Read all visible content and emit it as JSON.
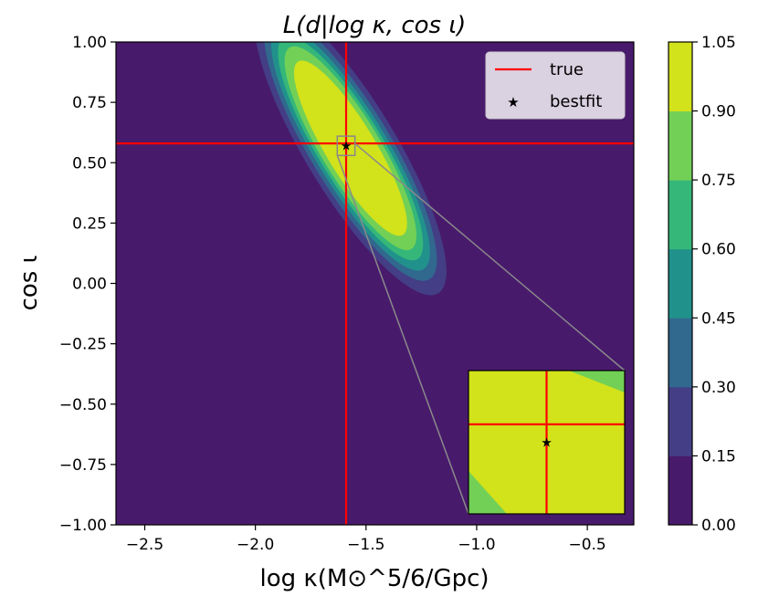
{
  "chart_data": {
    "type": "heatmap",
    "subtype": "filled-contour",
    "title": "L(d|log κ, cos ι)",
    "xlabel": "log κ(M⊙^5/6/Gpc)",
    "ylabel": "cos ι",
    "xlim": [
      -2.63,
      -0.29
    ],
    "ylim": [
      -1.0,
      1.0
    ],
    "x_ticks": [
      -2.5,
      -2.0,
      -1.5,
      -1.0,
      -0.5
    ],
    "x_tick_labels": [
      "−2.5",
      "−2.0",
      "−1.5",
      "−1.0",
      "−0.5"
    ],
    "y_ticks": [
      1.0,
      0.75,
      0.5,
      0.25,
      0.0,
      -0.25,
      -0.5,
      -0.75,
      -1.0
    ],
    "y_tick_labels": [
      "1.00",
      "0.75",
      "0.50",
      "0.25",
      "0.00",
      "−0.25",
      "−0.50",
      "−0.75",
      "−1.00"
    ],
    "colorbar": {
      "levels": [
        0.0,
        0.15,
        0.3,
        0.45,
        0.6,
        0.75,
        0.9,
        1.05
      ],
      "level_labels": [
        "0.00",
        "0.15",
        "0.30",
        "0.45",
        "0.60",
        "0.75",
        "0.90",
        "1.05"
      ],
      "colors": [
        "#481a6c",
        "#433e85",
        "#31688e",
        "#21918c",
        "#35b779",
        "#73d056",
        "#d2e21b"
      ]
    },
    "contours": {
      "center": [
        -1.57,
        0.56
      ],
      "axis_direction": [
        -0.55,
        0.835
      ],
      "semi_major_by_level": [
        0.72,
        0.65,
        0.6,
        0.55,
        0.5,
        0.43,
        0.26
      ],
      "semi_minor_by_level": [
        0.088,
        0.078,
        0.07,
        0.063,
        0.057,
        0.048,
        0.028
      ]
    },
    "true_value": {
      "x": -1.59,
      "y": 0.58
    },
    "bestfit": {
      "x": -1.59,
      "y": 0.57
    },
    "inset": {
      "xlim": [
        -1.63,
        -1.55
      ],
      "ylim": [
        0.53,
        0.61
      ],
      "location": "lower-right"
    },
    "legend": {
      "location": "upper-right",
      "entries": [
        {
          "label": "true",
          "marker": "line",
          "color": "#ff0000"
        },
        {
          "label": "bestfit",
          "marker": "star",
          "color": "#000000"
        }
      ]
    }
  }
}
